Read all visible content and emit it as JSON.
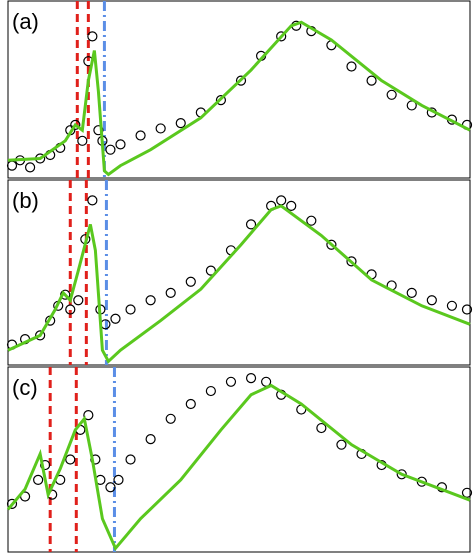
{
  "chart_data": [
    {
      "type": "line",
      "label": "(a)",
      "xlim": [
        0,
        460
      ],
      "ylim": [
        0,
        100
      ],
      "series": [
        {
          "color": "#000000",
          "marker": "circle",
          "x": [
            4,
            12,
            22,
            32,
            42,
            52,
            62,
            67,
            74,
            80,
            84,
            90,
            94,
            102,
            112,
            132,
            152,
            172,
            192,
            212,
            232,
            252,
            272,
            287,
            302,
            322,
            342,
            362,
            382,
            402,
            422,
            442,
            457
          ],
          "values": [
            7,
            10,
            6,
            11,
            13,
            17,
            27,
            30,
            21,
            66,
            80,
            27,
            21,
            16,
            19,
            24,
            28,
            31,
            37,
            44,
            55,
            69,
            80,
            86,
            83,
            75,
            63,
            55,
            47,
            41,
            37,
            33,
            30
          ]
        },
        {
          "color": "#5ac81e",
          "marker": "none",
          "x": [
            0,
            32,
            57,
            67,
            74,
            80,
            86,
            90,
            96,
            100,
            112,
            142,
            192,
            242,
            282,
            292,
            322,
            372,
            412,
            460
          ],
          "values": [
            10,
            11,
            21,
            30,
            27,
            55,
            72,
            49,
            4,
            2,
            7,
            16,
            34,
            61,
            86,
            88,
            78,
            55,
            41,
            27
          ]
        }
      ],
      "vlines": [
        {
          "x": 69,
          "color": "#e0201b",
          "style": "dashed"
        },
        {
          "x": 80,
          "color": "#e0201b",
          "style": "dashed"
        },
        {
          "x": 96,
          "color": "#5b8ee6",
          "style": "dashdot"
        }
      ]
    },
    {
      "type": "line",
      "label": "(b)",
      "xlim": [
        0,
        460
      ],
      "ylim": [
        0,
        100
      ],
      "series": [
        {
          "color": "#000000",
          "marker": "circle",
          "x": [
            4,
            17,
            32,
            42,
            50,
            57,
            62,
            70,
            77,
            84,
            92,
            97,
            107,
            122,
            142,
            162,
            182,
            202,
            222,
            242,
            262,
            272,
            282,
            302,
            322,
            342,
            362,
            382,
            402,
            422,
            442,
            457
          ],
          "values": [
            11,
            14,
            16,
            24,
            32,
            38,
            30,
            35,
            68,
            89,
            30,
            22,
            25,
            30,
            35,
            39,
            45,
            51,
            62,
            76,
            86,
            89,
            86,
            78,
            65,
            56,
            49,
            43,
            39,
            35,
            32,
            30
          ]
        },
        {
          "color": "#5ac81e",
          "marker": "none",
          "x": [
            0,
            32,
            47,
            55,
            62,
            70,
            82,
            87,
            94,
            100,
            112,
            152,
            192,
            232,
            262,
            272,
            312,
            362,
            412,
            460
          ],
          "values": [
            8,
            16,
            30,
            39,
            35,
            51,
            76,
            62,
            8,
            2,
            8,
            24,
            41,
            65,
            84,
            86,
            70,
            46,
            32,
            22
          ]
        }
      ],
      "vlines": [
        {
          "x": 62,
          "color": "#e0201b",
          "style": "dashed"
        },
        {
          "x": 78,
          "color": "#e0201b",
          "style": "dashed"
        },
        {
          "x": 98,
          "color": "#5b8ee6",
          "style": "dashdot"
        }
      ]
    },
    {
      "type": "line",
      "label": "(c)",
      "xlim": [
        0,
        460
      ],
      "ylim": [
        0,
        100
      ],
      "series": [
        {
          "color": "#000000",
          "marker": "circle",
          "x": [
            4,
            17,
            30,
            37,
            44,
            52,
            62,
            72,
            80,
            87,
            92,
            102,
            110,
            122,
            142,
            162,
            182,
            202,
            222,
            242,
            257,
            272,
            292,
            312,
            332,
            352,
            372,
            392,
            412,
            432,
            457
          ],
          "values": [
            26,
            30,
            39,
            47,
            31,
            39,
            50,
            66,
            74,
            50,
            39,
            35,
            39,
            50,
            61,
            72,
            80,
            87,
            92,
            94,
            92,
            85,
            77,
            67,
            58,
            53,
            47,
            42,
            38,
            35,
            32
          ]
        },
        {
          "color": "#5ac81e",
          "marker": "none",
          "x": [
            0,
            17,
            32,
            40,
            52,
            67,
            76,
            84,
            94,
            107,
            132,
            172,
            212,
            242,
            262,
            292,
            342,
            392,
            460
          ],
          "values": [
            23,
            34,
            53,
            31,
            45,
            66,
            72,
            50,
            18,
            2,
            18,
            39,
            66,
            85,
            90,
            80,
            58,
            42,
            28
          ]
        }
      ],
      "vlines": [
        {
          "x": 42,
          "color": "#e0201b",
          "style": "dashed"
        },
        {
          "x": 68,
          "color": "#e0201b",
          "style": "dashed"
        },
        {
          "x": 106,
          "color": "#5b8ee6",
          "style": "dashdot"
        }
      ]
    }
  ]
}
